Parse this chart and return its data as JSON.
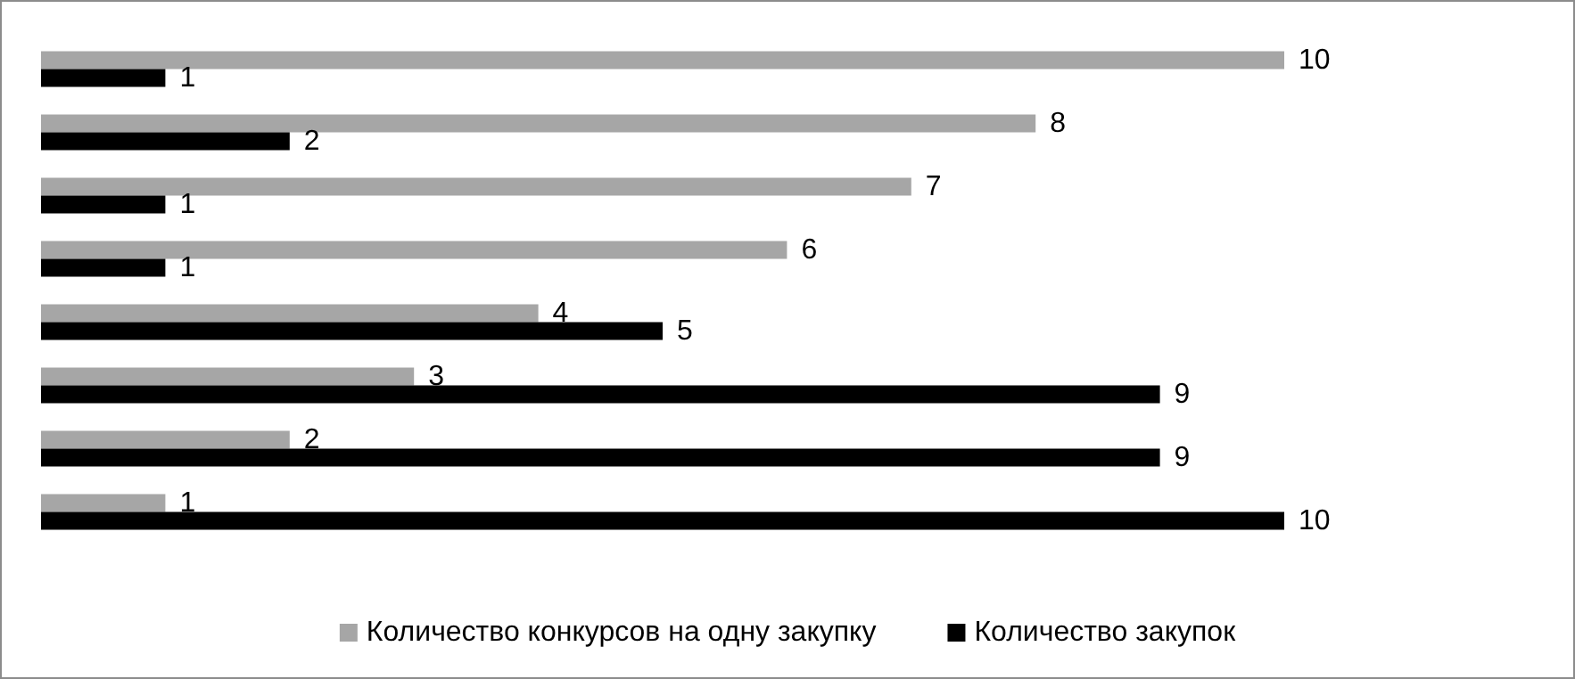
{
  "chart_data": {
    "type": "bar",
    "orientation": "horizontal",
    "categories": [
      null,
      null,
      null,
      null,
      null,
      null,
      null,
      null
    ],
    "series": [
      {
        "name": "Количество конкурсов на одну закупку",
        "color": "#a6a6a6",
        "values": [
          10,
          8,
          7,
          6,
          4,
          3,
          2,
          1
        ]
      },
      {
        "name": "Количество закупок",
        "color": "#000000",
        "values": [
          1,
          2,
          1,
          1,
          5,
          9,
          9,
          10
        ]
      }
    ],
    "data_labels": true,
    "legend": "bottom",
    "grid": false
  }
}
